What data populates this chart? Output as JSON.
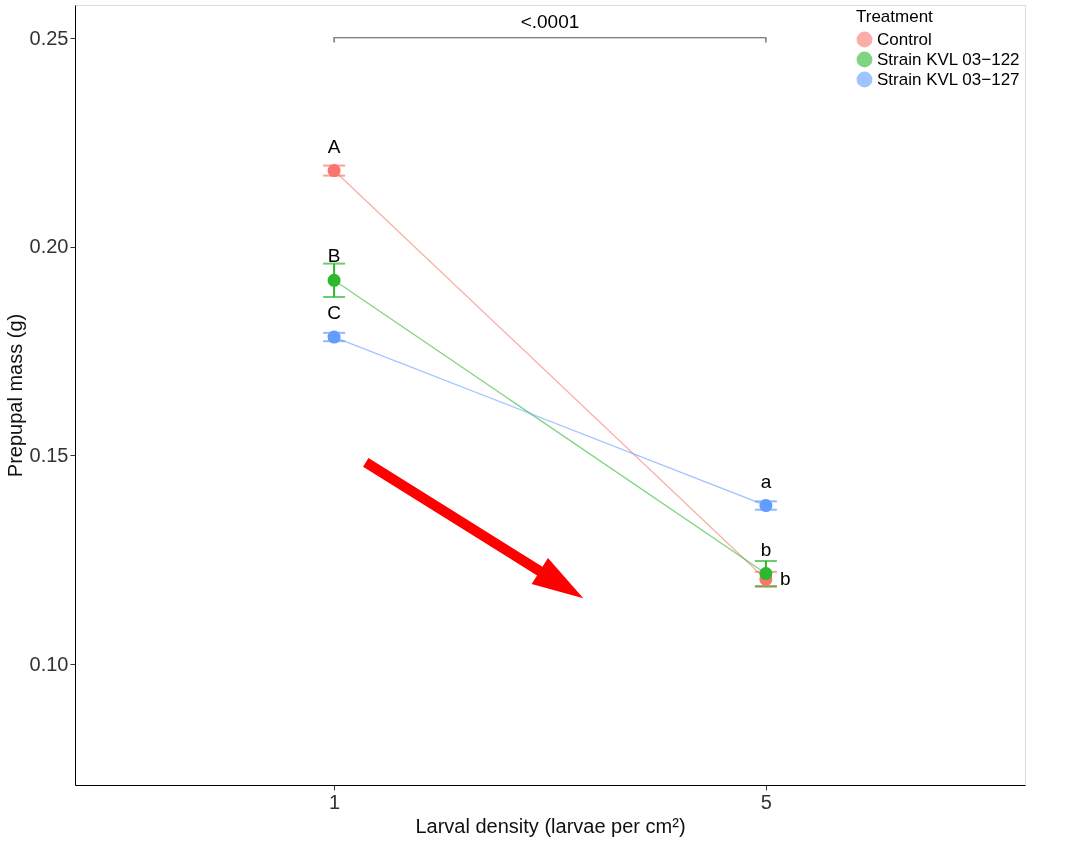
{
  "chart_data": {
    "type": "line",
    "xlabel": "Larval density (larvae per cm²)",
    "ylabel": "Prepupal mass (g)",
    "legend_title": "Treatment",
    "categories": [
      "1",
      "5"
    ],
    "series": [
      {
        "name": "Control",
        "color": "#f8766d",
        "values": [
          0.2183,
          0.1203
        ],
        "errors": [
          0.0012,
          0.0018
        ]
      },
      {
        "name": "Strain KVL 03−122",
        "color": "#2db82d",
        "values": [
          0.192,
          0.1217
        ],
        "errors": [
          0.004,
          0.003
        ]
      },
      {
        "name": "Strain KVL 03−127",
        "color": "#619cff",
        "values": [
          0.1784,
          0.138
        ],
        "errors": [
          0.001,
          0.001
        ]
      }
    ],
    "ylim": [
      0.071,
      0.258
    ],
    "yticks": [
      {
        "value": 0.1,
        "label": "0.10"
      },
      0.15,
      {
        "value": 0.2,
        "label": "0.20"
      },
      0.25
    ],
    "marker": "circle",
    "grid": false,
    "legend": "top right",
    "annotations": [
      "<.0001",
      {
        "text": "A",
        "x": "1",
        "y": 0.2183
      },
      {
        "text": "B",
        "x": "1",
        "y": 0.192
      },
      {
        "text": "C",
        "x": "1",
        "y": 0.1784
      },
      {
        "text": "a",
        "x": "5",
        "y": 0.138
      },
      {
        "text": "b",
        "x": "5",
        "y": 0.1217
      },
      {
        "text": "b",
        "x": "5",
        "y": 0.1203
      }
    ]
  }
}
